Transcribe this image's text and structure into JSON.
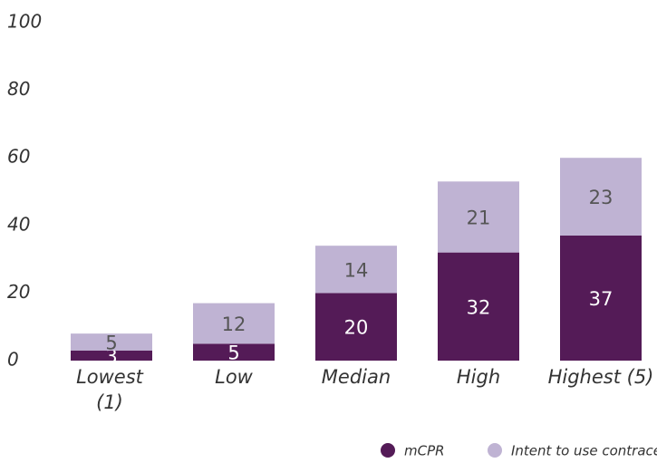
{
  "chart_data": {
    "type": "stacked_bar",
    "categories": [
      "Lowest (1)",
      "Low",
      "Median",
      "High",
      "Highest (5)"
    ],
    "series": [
      {
        "name": "mCPR",
        "color": "#541b57",
        "values": [
          3,
          5,
          20,
          32,
          37
        ]
      },
      {
        "name": "Intent to use contraception",
        "color": "#bfb3d3",
        "values": [
          5,
          12,
          14,
          21,
          23
        ]
      }
    ],
    "ylim": [
      0,
      100
    ],
    "yticks": [
      0,
      20,
      40,
      60,
      80,
      100
    ],
    "grid": false,
    "legend": "bottom-right"
  }
}
